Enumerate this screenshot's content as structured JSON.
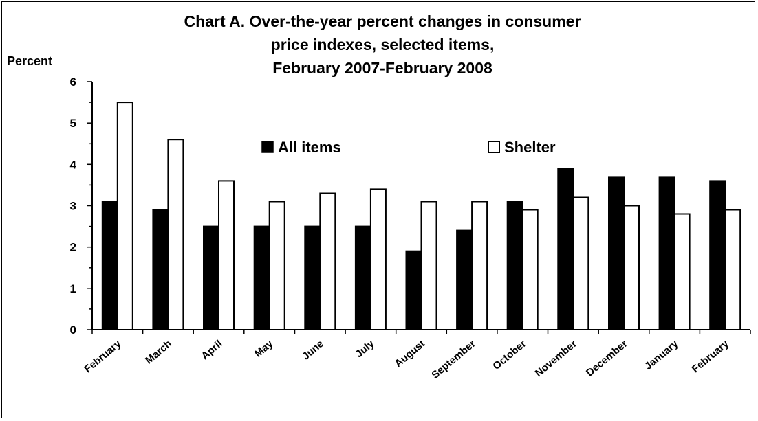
{
  "chart_data": {
    "type": "bar",
    "title_lines": [
      "Chart A. Over-the-year percent changes in consumer",
      "price indexes, selected items,",
      "February 2007-February 2008"
    ],
    "ylabel": "Percent",
    "xlabel": "",
    "ylim": [
      0,
      6
    ],
    "yticks": [
      0,
      1,
      2,
      3,
      4,
      5,
      6
    ],
    "categories": [
      "February",
      "March",
      "April",
      "May",
      "June",
      "July",
      "August",
      "September",
      "October",
      "November",
      "December",
      "January",
      "February"
    ],
    "series": [
      {
        "name": "All items",
        "color": "#000000",
        "values": [
          3.1,
          2.9,
          2.5,
          2.5,
          2.5,
          2.5,
          1.9,
          2.4,
          3.1,
          3.9,
          3.7,
          3.7,
          3.6
        ]
      },
      {
        "name": "Shelter",
        "color": "#ffffff",
        "values": [
          5.5,
          4.6,
          3.6,
          3.1,
          3.3,
          3.4,
          3.1,
          3.1,
          2.9,
          3.2,
          3.0,
          2.8,
          2.9
        ]
      }
    ],
    "grid": false,
    "legend_position": "inside-top"
  }
}
